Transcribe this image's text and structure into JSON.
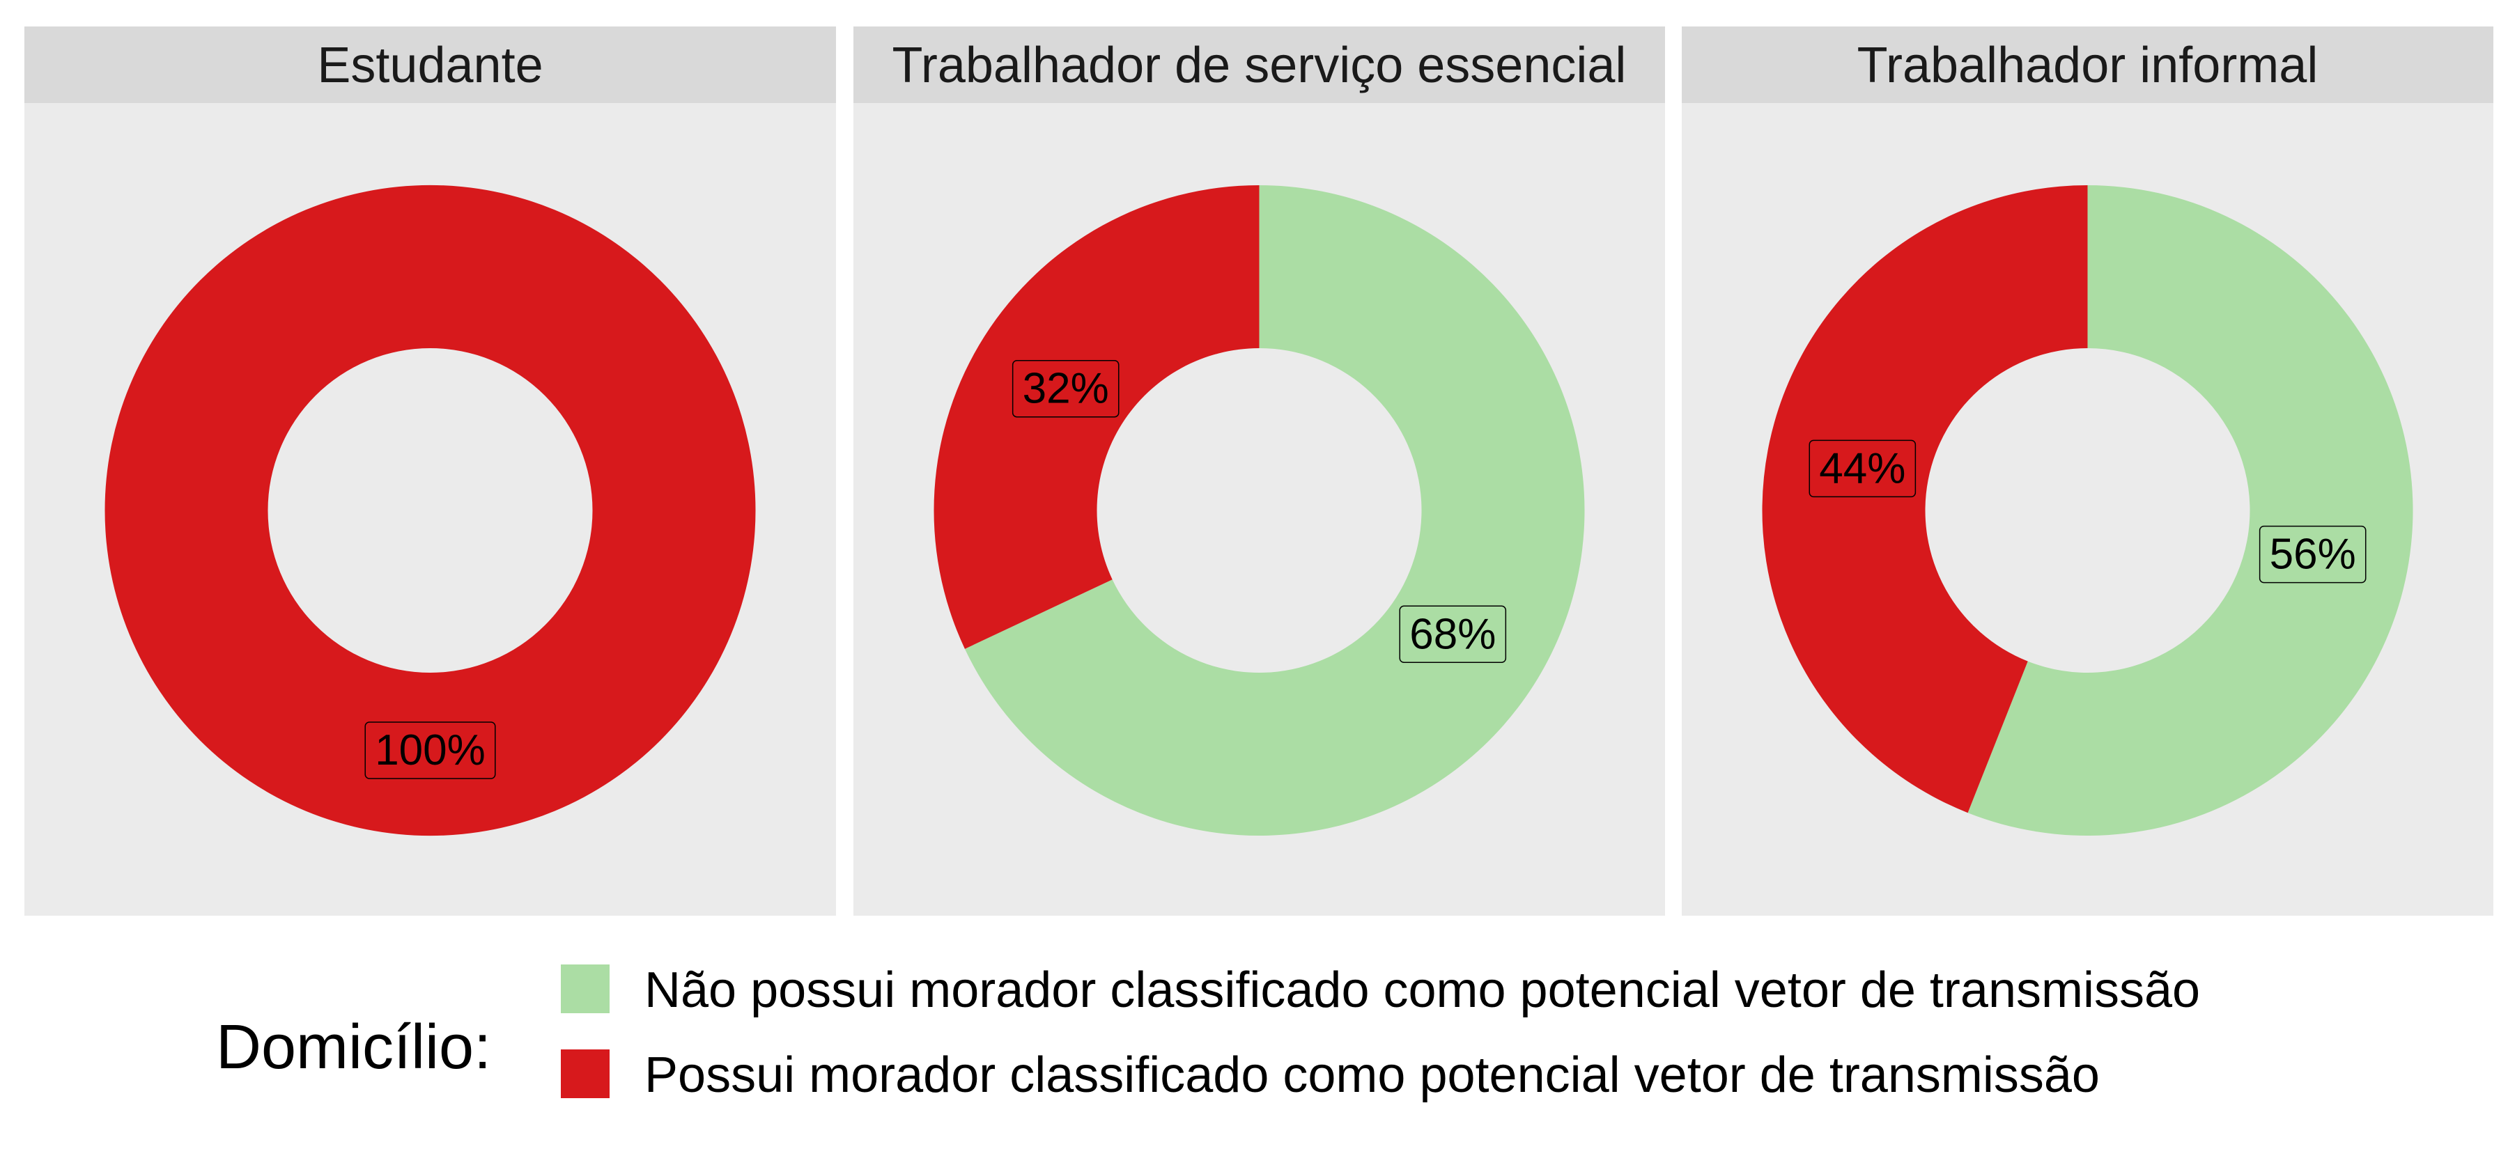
{
  "chart_data": {
    "type": "donut",
    "colors": {
      "nao": "#ABDDA4",
      "possui": "#D7191C",
      "panel_bg": "#EBEBEB",
      "strip_bg": "#D9D9D9"
    },
    "panels": [
      {
        "title": "Estudante",
        "slices": [
          {
            "key": "possui",
            "value": 100,
            "label": "100%"
          }
        ]
      },
      {
        "title": "Trabalhador de serviço essencial",
        "slices": [
          {
            "key": "nao",
            "value": 68,
            "label": "68%"
          },
          {
            "key": "possui",
            "value": 32,
            "label": "32%"
          }
        ]
      },
      {
        "title": "Trabalhador informal",
        "slices": [
          {
            "key": "nao",
            "value": 56,
            "label": "56%"
          },
          {
            "key": "possui",
            "value": 44,
            "label": "44%"
          }
        ]
      }
    ],
    "legend": {
      "title": "Domicílio:",
      "position": "bottom",
      "entries": [
        {
          "key": "nao",
          "label": "Não possui morador classificado como potencial vetor de transmissão"
        },
        {
          "key": "possui",
          "label": "Possui morador classificado como potencial vetor de transmissão"
        }
      ]
    }
  }
}
